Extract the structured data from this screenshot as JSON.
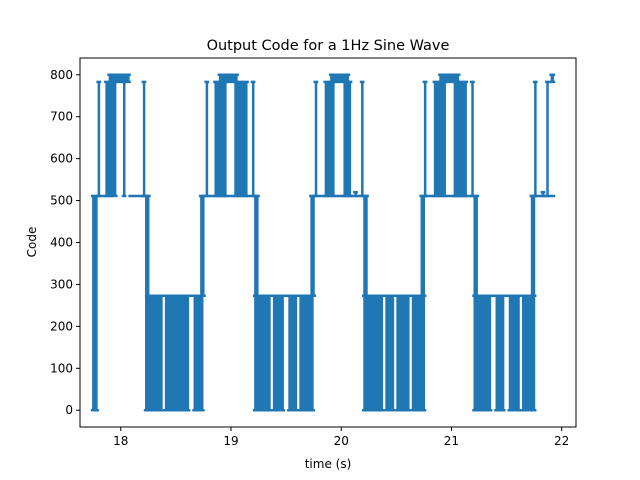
{
  "chart_data": {
    "type": "line",
    "title": "Output Code for a 1Hz Sine Wave",
    "xlabel": "time (s)",
    "ylabel": "Code",
    "xlim": [
      17.63,
      22.13
    ],
    "ylim": [
      -40,
      840
    ],
    "xticks": [
      18,
      19,
      20,
      21,
      22
    ],
    "yticks": [
      0,
      100,
      200,
      300,
      400,
      500,
      600,
      700,
      800
    ],
    "grid": false,
    "legend": "none",
    "series": [
      {
        "color": "#1f77b4",
        "segments": [
          {
            "x0": 17.74,
            "x1": 17.79,
            "vals": [
              0,
              511
            ]
          },
          {
            "x0": 17.79,
            "x1": 17.92,
            "vals": [
              511
            ]
          },
          {
            "x0": 17.79,
            "x1": 17.81,
            "vals": [
              511,
              783
            ]
          },
          {
            "x0": 17.86,
            "x1": 17.96,
            "vals": [
              511,
              783
            ]
          },
          {
            "x0": 17.89,
            "x1": 18.08,
            "vals": [
              783,
              800
            ]
          },
          {
            "x0": 18.08,
            "x1": 18.24,
            "vals": [
              511
            ]
          },
          {
            "x0": 18.02,
            "x1": 18.04,
            "vals": [
              511,
              783
            ]
          },
          {
            "x0": 18.2,
            "x1": 18.22,
            "vals": [
              511,
              783
            ]
          },
          {
            "x0": 18.22,
            "x1": 18.26,
            "vals": [
              0,
              511
            ]
          },
          {
            "x0": 18.23,
            "x1": 18.75,
            "vals": [
              273
            ]
          },
          {
            "x0": 18.24,
            "x1": 18.38,
            "vals": [
              0,
              273
            ]
          },
          {
            "x0": 18.4,
            "x1": 18.62,
            "vals": [
              0,
              273
            ]
          },
          {
            "x0": 18.66,
            "x1": 18.75,
            "vals": [
              0,
              273
            ]
          },
          {
            "x0": 18.72,
            "x1": 18.76,
            "vals": [
              273,
              511
            ]
          },
          {
            "x0": 18.75,
            "x1": 19.23,
            "vals": [
              511
            ]
          },
          {
            "x0": 18.77,
            "x1": 18.79,
            "vals": [
              511,
              783
            ]
          },
          {
            "x0": 18.85,
            "x1": 18.96,
            "vals": [
              511,
              783
            ]
          },
          {
            "x0": 18.89,
            "x1": 19.06,
            "vals": [
              783,
              800
            ]
          },
          {
            "x0": 19.03,
            "x1": 19.15,
            "vals": [
              511,
              783
            ]
          },
          {
            "x0": 19.19,
            "x1": 19.21,
            "vals": [
              511,
              783
            ]
          },
          {
            "x0": 19.21,
            "x1": 19.25,
            "vals": [
              0,
              511
            ]
          },
          {
            "x0": 19.21,
            "x1": 19.75,
            "vals": [
              273
            ]
          },
          {
            "x0": 19.23,
            "x1": 19.36,
            "vals": [
              0,
              273
            ]
          },
          {
            "x0": 19.38,
            "x1": 19.48,
            "vals": [
              0,
              273
            ]
          },
          {
            "x0": 19.52,
            "x1": 19.6,
            "vals": [
              0,
              273
            ]
          },
          {
            "x0": 19.62,
            "x1": 19.75,
            "vals": [
              0,
              273
            ]
          },
          {
            "x0": 19.72,
            "x1": 19.76,
            "vals": [
              273,
              511
            ]
          },
          {
            "x0": 19.75,
            "x1": 20.22,
            "vals": [
              511
            ]
          },
          {
            "x0": 19.76,
            "x1": 19.78,
            "vals": [
              511,
              783
            ]
          },
          {
            "x0": 19.85,
            "x1": 19.94,
            "vals": [
              511,
              783
            ]
          },
          {
            "x0": 19.9,
            "x1": 20.07,
            "vals": [
              783,
              800
            ]
          },
          {
            "x0": 20.02,
            "x1": 20.09,
            "vals": [
              511,
              783
            ]
          },
          {
            "x0": 20.12,
            "x1": 20.14,
            "vals": [
              511,
              520
            ]
          },
          {
            "x0": 20.18,
            "x1": 20.2,
            "vals": [
              511,
              783
            ]
          },
          {
            "x0": 20.2,
            "x1": 20.24,
            "vals": [
              0,
              511
            ]
          },
          {
            "x0": 20.2,
            "x1": 20.76,
            "vals": [
              273
            ]
          },
          {
            "x0": 20.22,
            "x1": 20.38,
            "vals": [
              0,
              273
            ]
          },
          {
            "x0": 20.4,
            "x1": 20.48,
            "vals": [
              0,
              273
            ]
          },
          {
            "x0": 20.5,
            "x1": 20.62,
            "vals": [
              0,
              273
            ]
          },
          {
            "x0": 20.64,
            "x1": 20.76,
            "vals": [
              0,
              273
            ]
          },
          {
            "x0": 20.72,
            "x1": 20.76,
            "vals": [
              273,
              511
            ]
          },
          {
            "x0": 20.74,
            "x1": 21.22,
            "vals": [
              511
            ]
          },
          {
            "x0": 20.75,
            "x1": 20.77,
            "vals": [
              511,
              783
            ]
          },
          {
            "x0": 20.84,
            "x1": 20.95,
            "vals": [
              511,
              783
            ]
          },
          {
            "x0": 20.89,
            "x1": 21.07,
            "vals": [
              783,
              800
            ]
          },
          {
            "x0": 21.02,
            "x1": 21.14,
            "vals": [
              511,
              783
            ]
          },
          {
            "x0": 21.18,
            "x1": 21.2,
            "vals": [
              511,
              783
            ]
          },
          {
            "x0": 21.2,
            "x1": 21.24,
            "vals": [
              0,
              511
            ]
          },
          {
            "x0": 21.2,
            "x1": 21.76,
            "vals": [
              273
            ]
          },
          {
            "x0": 21.22,
            "x1": 21.36,
            "vals": [
              0,
              273
            ]
          },
          {
            "x0": 21.4,
            "x1": 21.48,
            "vals": [
              0,
              273
            ]
          },
          {
            "x0": 21.52,
            "x1": 21.62,
            "vals": [
              0,
              273
            ]
          },
          {
            "x0": 21.64,
            "x1": 21.76,
            "vals": [
              0,
              273
            ]
          },
          {
            "x0": 21.72,
            "x1": 21.76,
            "vals": [
              273,
              511
            ]
          },
          {
            "x0": 21.74,
            "x1": 21.93,
            "vals": [
              511
            ]
          },
          {
            "x0": 21.75,
            "x1": 21.77,
            "vals": [
              511,
              783
            ]
          },
          {
            "x0": 21.82,
            "x1": 21.84,
            "vals": [
              511,
              520
            ]
          },
          {
            "x0": 21.86,
            "x1": 21.88,
            "vals": [
              511,
              783
            ]
          },
          {
            "x0": 21.9,
            "x1": 21.93,
            "vals": [
              783,
              800
            ]
          }
        ]
      }
    ]
  }
}
